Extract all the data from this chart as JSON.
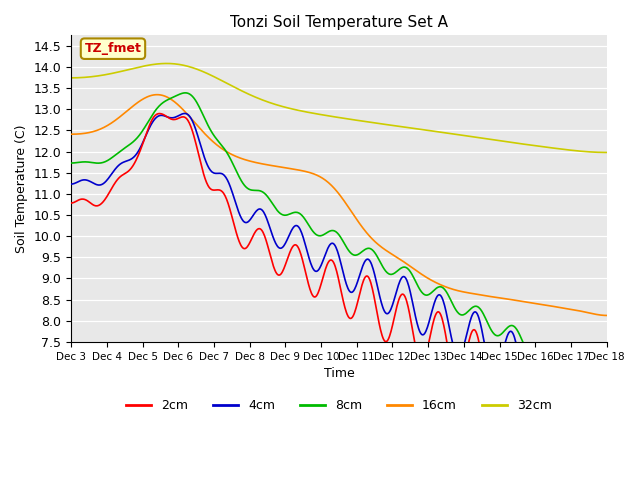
{
  "title": "Tonzi Soil Temperature Set A",
  "xlabel": "Time",
  "ylabel": "Soil Temperature (C)",
  "ylim": [
    7.5,
    14.75
  ],
  "annotation": "TZ_fmet",
  "annotation_color": "#cc0000",
  "annotation_bg": "#ffffcc",
  "series": {
    "2cm": {
      "color": "#ff0000",
      "lw": 1.2
    },
    "4cm": {
      "color": "#0000cc",
      "lw": 1.2
    },
    "8cm": {
      "color": "#00bb00",
      "lw": 1.2
    },
    "16cm": {
      "color": "#ff8800",
      "lw": 1.2
    },
    "32cm": {
      "color": "#cccc00",
      "lw": 1.2
    }
  },
  "xtick_labels": [
    "Dec 3",
    "Dec 4",
    "Dec 5",
    "Dec 6",
    "Dec 7",
    "Dec 8",
    "Dec 9",
    "Dec 10",
    "Dec 11",
    "Dec 12",
    "Dec 13",
    "Dec 14",
    "Dec 15",
    "Dec 16",
    "Dec 17",
    "Dec 18"
  ],
  "yticks": [
    7.5,
    8.0,
    8.5,
    9.0,
    9.5,
    10.0,
    10.5,
    11.0,
    11.5,
    12.0,
    12.5,
    13.0,
    13.5,
    14.0,
    14.5
  ],
  "n_points": 721
}
